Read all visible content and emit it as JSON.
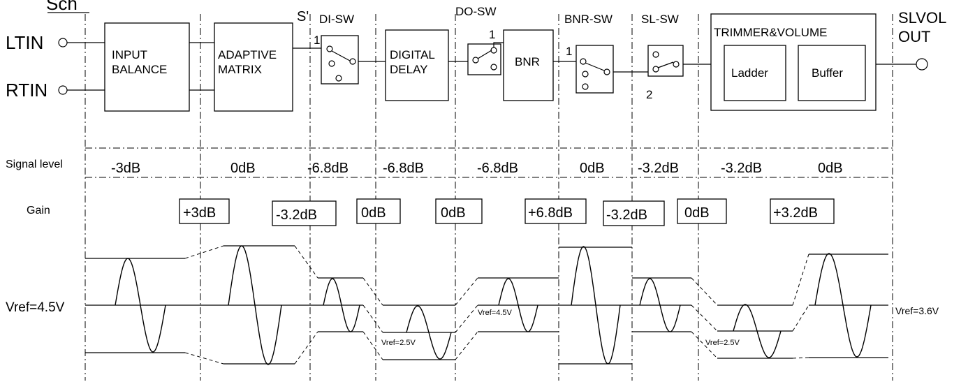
{
  "channel_label": "Sch",
  "inputs": {
    "left": "LTIN",
    "right": "RTIN"
  },
  "output": {
    "line1": "SLVOL",
    "line2": "OUT"
  },
  "blocks": {
    "input_balance": [
      "INPUT",
      "BALANCE"
    ],
    "adaptive_matrix": [
      "ADAPTIVE",
      "MATRIX"
    ],
    "digital_delay": [
      "DIGITAL",
      "DELAY"
    ],
    "bnr": "BNR",
    "trimmer_volume": "TRIMMER&VOLUME",
    "ladder": "Ladder",
    "buffer": "Buffer"
  },
  "switches": {
    "s_prime": "S'",
    "di_sw": "DI-SW",
    "do_sw": "DO-SW",
    "bnr_sw": "BNR-SW",
    "sl_sw": "SL-SW",
    "pin1_a": "1",
    "pin1_b": "1",
    "pin1_c": "1",
    "pin2": "2"
  },
  "signal_level": {
    "label": "Signal level",
    "values": [
      "-3dB",
      "0dB",
      "-6.8dB",
      "-6.8dB",
      "-6.8dB",
      "0dB",
      "-3.2dB",
      "-3.2dB",
      "0dB"
    ]
  },
  "gain": {
    "label": "Gain",
    "values": [
      "+3dB",
      "-3.2dB",
      "0dB",
      "0dB",
      "+6.8dB",
      "-3.2dB",
      "0dB",
      "+3.2dB"
    ]
  },
  "vref": {
    "left": "Vref=4.5V",
    "at_delay": "Vref=2.5V",
    "at_bnr": "Vref=4.5V",
    "at_ladder": "Vref=2.5V",
    "right": "Vref=3.6V"
  }
}
